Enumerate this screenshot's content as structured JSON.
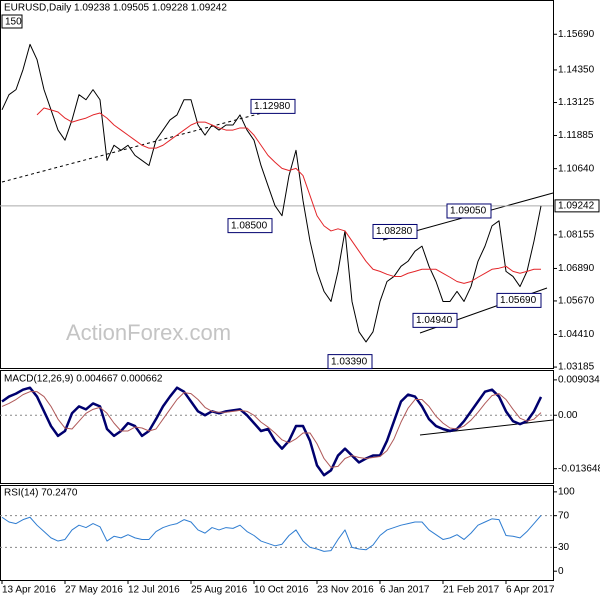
{
  "chart_data": [
    {
      "type": "line",
      "title": "EURUSD,Daily  1.09238 1.09505 1.09228 1.09242",
      "corner_label": "150",
      "watermark": "ActionForex.com",
      "ylim": [
        1.0315,
        1.1694
      ],
      "yticks": [
        {
          "value": 1.1569,
          "label": "1.15690"
        },
        {
          "value": 1.1435,
          "label": "1.14350"
        },
        1.13125,
        1.11885,
        {
          "value": 1.1064,
          "label": "1.10640"
        },
        1.08155,
        {
          "value": 1.0689,
          "label": "1.06890"
        },
        {
          "value": 1.0567,
          "label": "1.05670"
        },
        {
          "value": 1.0441,
          "label": "1.04410"
        },
        1.03185
      ],
      "last_price": {
        "value": 1.09242,
        "label": "1.09242"
      },
      "annotations": [
        {
          "value": 1.1298,
          "label": "1.12980"
        },
        {
          "value": 1.085,
          "label": "1.08500"
        },
        {
          "value": 1.0828,
          "label": "1.08280"
        },
        {
          "value": 1.0905,
          "label": "1.09050"
        },
        {
          "value": 1.0569,
          "label": "1.05690"
        },
        {
          "value": 1.0494,
          "label": "1.04940"
        },
        {
          "value": 1.0339,
          "label": "1.03390"
        }
      ],
      "series": [
        {
          "color": "#000000",
          "values": [
            1.1285,
            1.1342,
            1.1361,
            1.1436,
            1.1531,
            1.1474,
            1.1361,
            1.1285,
            1.1209,
            1.1171,
            1.1247,
            1.1342,
            1.1323,
            1.1361,
            1.1323,
            1.1095,
            1.1152,
            1.1133,
            1.1152,
            1.1114,
            1.1095,
            1.1076,
            1.1171,
            1.1209,
            1.1247,
            1.1266,
            1.1323,
            1.1323,
            1.1228,
            1.119,
            1.1228,
            1.1209,
            1.1228,
            1.1228,
            1.1266,
            1.1209,
            1.1171,
            1.1076,
            1.1,
            1.0925,
            1.0887,
            1.1038,
            1.1133,
            1.0944,
            1.0792,
            1.0678,
            1.0603,
            1.0565,
            1.0678,
            1.083,
            1.0565,
            1.0451,
            1.0413,
            1.0451,
            1.0565,
            1.064,
            1.0659,
            1.0697,
            1.0716,
            1.0754,
            1.0773,
            1.0697,
            1.064,
            1.0565,
            1.0565,
            1.0603,
            1.0565,
            1.0621,
            1.0716,
            1.0773,
            1.0849,
            1.0868,
            1.0678,
            1.0659,
            1.0621,
            1.0678,
            1.0792,
            1.0924
          ]
        },
        {
          "color": "#e3262a",
          "values": [
            null,
            null,
            null,
            null,
            null,
            1.1266,
            1.1292,
            1.1285,
            1.1277,
            1.1254,
            1.1239,
            1.1247,
            1.1254,
            1.1266,
            1.1273,
            1.1254,
            1.1228,
            1.1209,
            1.119,
            1.1171,
            1.1152,
            1.1141,
            1.1141,
            1.1152,
            1.1171,
            1.119,
            1.1209,
            1.1228,
            1.1239,
            1.1239,
            1.1228,
            1.1217,
            1.1209,
            1.1209,
            1.1217,
            1.1217,
            1.119,
            1.1152,
            1.1114,
            1.1088,
            1.1065,
            1.1057,
            1.1065,
            1.1038,
            1.0963,
            1.0887,
            1.0849,
            1.083,
            1.0838,
            1.083,
            1.0792,
            1.0754,
            1.0716,
            1.0686,
            1.0678,
            1.0667,
            1.0659,
            1.0659,
            1.0671,
            1.0678,
            1.0686,
            1.0686,
            1.0686,
            1.0671,
            1.0656,
            1.064,
            1.0633,
            1.064,
            1.0656,
            1.0671,
            1.0686,
            1.069,
            1.0697,
            1.0678,
            1.0671,
            1.0678,
            1.0686,
            1.0686
          ]
        }
      ]
    },
    {
      "type": "line",
      "title": "MACD(12,26,9) 0.004667 0.000662",
      "ylim": [
        -0.0173,
        0.0113
      ],
      "yticks": [
        0.009034,
        {
          "value": 0,
          "label": "0.00"
        },
        -0.013648
      ],
      "series": [
        {
          "color": "#00006e",
          "values": [
            0.00351,
            0.00477,
            0.00552,
            0.00653,
            0.00703,
            0.00477,
            0.001,
            -0.00276,
            -0.00527,
            -0.00402,
            0.0005,
            0.00226,
            0.00151,
            0.00301,
            0.00226,
            -0.00351,
            -0.00527,
            -0.00402,
            -0.00201,
            -0.00276,
            -0.00527,
            -0.00402,
            -0.001,
            0.00226,
            0.00477,
            0.00703,
            0.00602,
            0.00351,
            0.001,
            0,
            0.001,
            0.0005,
            0.001,
            0.00126,
            0.00151,
            0,
            -0.00201,
            -0.00402,
            -0.00351,
            -0.00653,
            -0.00853,
            -0.00653,
            -0.00276,
            -0.00276,
            -0.00653,
            -0.0128,
            -0.01531,
            -0.01406,
            -0.01029,
            -0.00853,
            -0.01029,
            -0.01205,
            -0.01104,
            -0.01029,
            -0.01029,
            -0.00653,
            -0.00151,
            0.00351,
            0.00527,
            0.00477,
            0.00226,
            -0.001,
            -0.00276,
            -0.00351,
            -0.00402,
            -0.00351,
            -0.00151,
            0.001,
            0.00351,
            0.00602,
            0.00653,
            0.00477,
            0.001,
            -0.00151,
            -0.00226,
            -0.00151,
            0.001,
            0.00467
          ]
        },
        {
          "color": "#b05a5a",
          "values": [
            0.00226,
            0.00301,
            0.00402,
            0.00527,
            0.00602,
            0.00602,
            0.00477,
            0.00226,
            -0.001,
            -0.00326,
            -0.00351,
            -0.00151,
            0.0005,
            0.00151,
            0.00201,
            0.0005,
            -0.00201,
            -0.00402,
            -0.00402,
            -0.00301,
            -0.00326,
            -0.00402,
            -0.00351,
            -0.001,
            0.00151,
            0.00402,
            0.00577,
            0.00552,
            0.00402,
            0.00201,
            0.001,
            0.00075,
            0.00075,
            0.001,
            0.00126,
            0.001,
            0,
            -0.00176,
            -0.00301,
            -0.00452,
            -0.00628,
            -0.00703,
            -0.00602,
            -0.00452,
            -0.00452,
            -0.00728,
            -0.01104,
            -0.0133,
            -0.01305,
            -0.01104,
            -0.01029,
            -0.01079,
            -0.01104,
            -0.01079,
            -0.01054,
            -0.00904,
            -0.00602,
            -0.00176,
            0.00176,
            0.00402,
            0.00402,
            0.00226,
            -0.00025,
            -0.00201,
            -0.00326,
            -0.00351,
            -0.00276,
            -0.00126,
            0.00075,
            0.00301,
            0.00502,
            0.00552,
            0.00402,
            0.00151,
            -0.00075,
            -0.00151,
            -0.001,
            0.00066
          ]
        }
      ]
    },
    {
      "type": "line",
      "title": "RSI(14) 70.2470",
      "ylim": [
        -11.1,
        107.4
      ],
      "yticks": [
        100,
        70,
        30,
        0
      ],
      "categories": [
        "13 Apr 2016",
        null,
        null,
        null,
        null,
        null,
        null,
        null,
        null,
        "27 May 2016",
        null,
        null,
        null,
        null,
        null,
        null,
        null,
        null,
        "12 Jul 2016",
        null,
        null,
        null,
        null,
        null,
        null,
        null,
        null,
        "25 Aug 2016",
        null,
        null,
        null,
        null,
        null,
        null,
        null,
        null,
        "10 Oct 2016",
        null,
        null,
        null,
        null,
        null,
        null,
        null,
        null,
        "23 Nov 2016",
        null,
        null,
        null,
        null,
        null,
        null,
        null,
        null,
        "6 Jan 2017",
        null,
        null,
        null,
        null,
        null,
        null,
        null,
        null,
        "21 Feb 2017",
        null,
        null,
        null,
        null,
        null,
        null,
        null,
        null,
        "6 Apr 2017",
        null,
        null,
        null,
        null,
        null
      ],
      "series": [
        {
          "color": "#2f7dd1",
          "values": [
            68,
            62,
            60,
            65,
            68,
            58,
            50,
            42,
            38,
            40,
            52,
            58,
            55,
            60,
            56,
            38,
            44,
            42,
            46,
            42,
            40,
            40,
            50,
            55,
            58,
            60,
            65,
            62,
            52,
            48,
            55,
            52,
            55,
            54,
            58,
            50,
            45,
            38,
            35,
            32,
            34,
            45,
            52,
            38,
            30,
            28,
            25,
            26,
            40,
            52,
            30,
            28,
            27,
            33,
            45,
            52,
            55,
            58,
            60,
            62,
            62,
            52,
            46,
            40,
            42,
            46,
            40,
            48,
            58,
            62,
            66,
            65,
            45,
            44,
            42,
            50,
            60,
            70.247
          ]
        }
      ]
    }
  ]
}
